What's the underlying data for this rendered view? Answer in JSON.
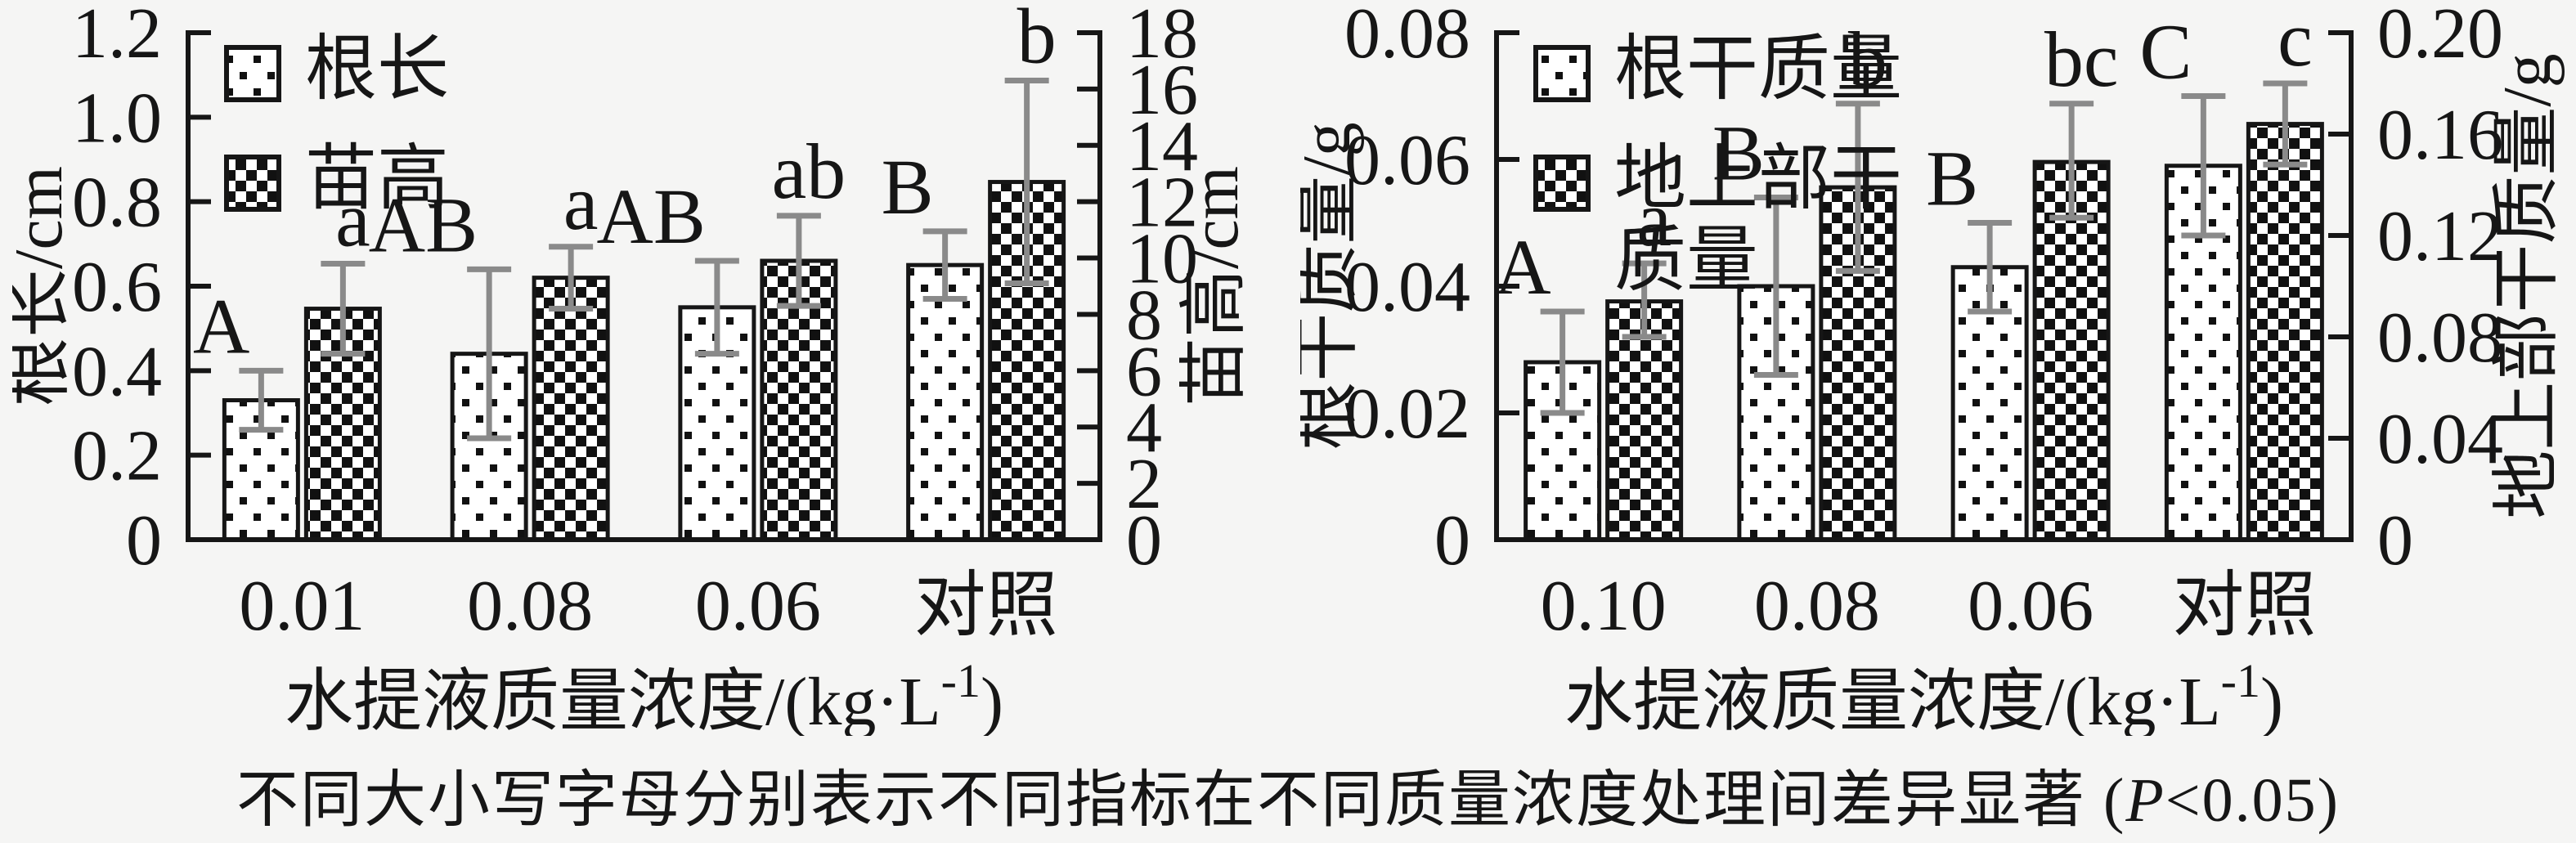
{
  "figure": {
    "background": "#f5f5f4",
    "axis_color": "#161616",
    "error_bar_color": "#8a8a8a",
    "caption": {
      "prefix": "不同大小写字母分别表示不同指标在不同质量浓度处理间差异显著 (",
      "p_symbol": "P",
      "suffix": "<0.05)"
    }
  },
  "chart_data": [
    {
      "type": "bar",
      "title": "",
      "categories": [
        "0.01",
        "0.08",
        "0.06",
        "对照"
      ],
      "xlabel": {
        "text": "水提液质量浓度/(kg·L⁻¹)",
        "base": "水提液质量浓度/(kg·L",
        "sup": "-1",
        "end": ")"
      },
      "left_axis": {
        "label": "根长/cm",
        "min": 0,
        "max": 1.2,
        "ticks": [
          "1.2",
          "1.0",
          "0.8",
          "0.6",
          "0.4",
          "0.2",
          "0"
        ]
      },
      "right_axis": {
        "label": "苗高/cm",
        "min": 0,
        "max": 18,
        "ticks": [
          "18",
          "16",
          "14",
          "12",
          "10",
          "8",
          "6",
          "4",
          "2",
          "0"
        ]
      },
      "grid": false,
      "legend_position": "top-left",
      "series": [
        {
          "name": "根长",
          "axis": "left",
          "pattern": "dots",
          "values": [
            0.33,
            0.44,
            0.55,
            0.65
          ],
          "err_up": [
            0.07,
            0.2,
            0.11,
            0.08
          ],
          "err_down": [
            0.07,
            0.2,
            0.11,
            0.08
          ],
          "letters": [
            "A",
            "AB",
            "AB",
            "B"
          ]
        },
        {
          "name": "苗高",
          "axis": "right",
          "pattern": "checker",
          "values": [
            8.2,
            9.3,
            9.9,
            12.7
          ],
          "err_up": [
            1.6,
            1.1,
            1.6,
            3.6
          ],
          "err_down": [
            1.6,
            1.1,
            1.6,
            3.6
          ],
          "letters": [
            "a",
            "a",
            "ab",
            "b"
          ]
        }
      ],
      "legend_items": [
        {
          "label": "根长",
          "label_lines": [
            "根长"
          ],
          "pattern": "dots"
        },
        {
          "label": "苗高",
          "label_lines": [
            "苗高"
          ],
          "pattern": "checker"
        }
      ]
    },
    {
      "type": "bar",
      "title": "",
      "categories": [
        "0.10",
        "0.08",
        "0.06",
        "对照"
      ],
      "xlabel": {
        "text": "水提液质量浓度/(kg·L⁻¹)",
        "base": "水提液质量浓度/(kg·L",
        "sup": "-1",
        "end": ")"
      },
      "left_axis": {
        "label": "根干质量/g",
        "min": 0,
        "max": 0.08,
        "ticks": [
          "0.08",
          "0.06",
          "0.04",
          "0.02",
          "0"
        ]
      },
      "right_axis": {
        "label": "地上部干质量/g",
        "min": 0,
        "max": 0.2,
        "ticks": [
          "0.20",
          "0.16",
          "0.12",
          "0.08",
          "0.04",
          "0"
        ]
      },
      "grid": false,
      "legend_position": "top-left",
      "series": [
        {
          "name": "根干质量",
          "axis": "left",
          "pattern": "dots",
          "values": [
            0.028,
            0.04,
            0.043,
            0.059
          ],
          "err_up": [
            0.008,
            0.014,
            0.007,
            0.011
          ],
          "err_down": [
            0.008,
            0.014,
            0.007,
            0.011
          ],
          "letters": [
            "A",
            "B",
            "B",
            "C"
          ]
        },
        {
          "name": "地上部干质量",
          "axis": "right",
          "pattern": "checker",
          "values": [
            0.094,
            0.139,
            0.149,
            0.164
          ],
          "err_up": [
            0.015,
            0.033,
            0.023,
            0.016
          ],
          "err_down": [
            0.014,
            0.033,
            0.022,
            0.016
          ],
          "letters": [
            "a",
            "b",
            "bc",
            "c"
          ]
        }
      ],
      "legend_items": [
        {
          "label": "根干质量",
          "label_lines": [
            "根干质量"
          ],
          "pattern": "dots"
        },
        {
          "label": "地上部干质量",
          "label_lines": [
            "地上部干",
            "质量"
          ],
          "pattern": "checker"
        }
      ]
    }
  ]
}
